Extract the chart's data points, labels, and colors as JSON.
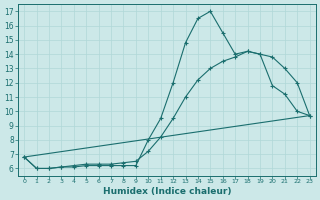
{
  "xlabel": "Humidex (Indice chaleur)",
  "bg_color": "#cce8e8",
  "line_color": "#1a6e6e",
  "grid_color": "#b0d8d8",
  "xmin": -0.5,
  "xmax": 23.5,
  "ymin": 5.5,
  "ymax": 17.5,
  "yticks": [
    6,
    7,
    8,
    9,
    10,
    11,
    12,
    13,
    14,
    15,
    16,
    17
  ],
  "xtick_labels": [
    "0",
    "1",
    "2",
    "3",
    "4",
    "5",
    "6",
    "7",
    "8",
    "9",
    "10",
    "11",
    "12",
    "13",
    "14",
    "15",
    "16",
    "17",
    "18",
    "19",
    "20",
    "21",
    "22",
    "23"
  ],
  "line1_x": [
    0,
    1,
    2,
    3,
    4,
    5,
    6,
    7,
    8,
    9,
    10,
    11,
    12,
    13,
    14,
    15,
    16,
    17,
    18,
    19,
    20,
    21,
    22,
    23
  ],
  "line1_y": [
    6.8,
    6.0,
    6.0,
    6.1,
    6.1,
    6.2,
    6.2,
    6.2,
    6.2,
    6.2,
    8.0,
    9.5,
    12.0,
    14.8,
    16.5,
    17.0,
    15.5,
    14.0,
    14.2,
    14.0,
    11.8,
    11.2,
    10.0,
    9.7
  ],
  "line2_x": [
    0,
    1,
    2,
    3,
    4,
    5,
    6,
    7,
    8,
    9,
    10,
    11,
    12,
    13,
    14,
    15,
    16,
    17,
    18,
    19,
    20,
    21,
    22,
    23
  ],
  "line2_y": [
    6.8,
    6.0,
    6.0,
    6.1,
    6.2,
    6.3,
    6.3,
    6.3,
    6.4,
    6.5,
    7.2,
    8.2,
    9.5,
    11.0,
    12.2,
    13.0,
    13.5,
    13.8,
    14.2,
    14.0,
    13.8,
    13.0,
    12.0,
    9.7
  ],
  "line3_x": [
    0,
    23
  ],
  "line3_y": [
    6.8,
    9.7
  ]
}
